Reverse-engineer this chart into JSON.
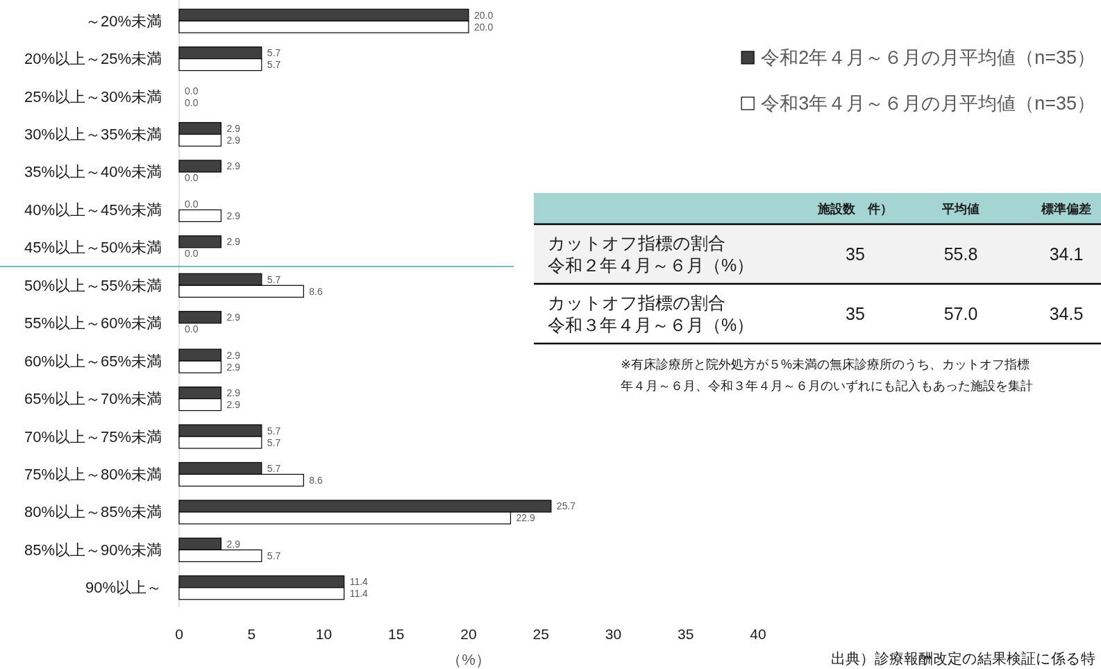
{
  "chart_data": [
    {
      "type": "bar",
      "orientation": "horizontal",
      "categories": [
        "～20%未満",
        "20%以上～25%未満",
        "25%以上～30%未満",
        "30%以上～35%未満",
        "35%以上～40%未満",
        "40%以上～45%未満",
        "45%以上～50%未満",
        "50%以上～55%未満",
        "55%以上～60%未満",
        "60%以上～65%未満",
        "65%以上～70%未満",
        "70%以上～75%未満",
        "75%以上～80%未満",
        "80%以上～85%未満",
        "85%以上～90%未満",
        "90%以上～"
      ],
      "series": [
        {
          "name": "令和2年４月～６月の月平均値（n=35）",
          "color": "#404040",
          "values": [
            20.0,
            5.7,
            0.0,
            2.9,
            2.9,
            0.0,
            2.9,
            5.7,
            2.9,
            2.9,
            2.9,
            5.7,
            5.7,
            25.7,
            2.9,
            11.4
          ],
          "value_labels": [
            "20.0",
            "5.7",
            "0.0",
            "2.9",
            "2.9",
            "0.0",
            "2.9",
            "5.7",
            "2.9",
            "2.9",
            "2.9",
            "5.7",
            "5.7",
            "25.7",
            "2.9",
            "11.4"
          ]
        },
        {
          "name": "令和3年４月～６月の月平均値（n=35）",
          "color": "#ffffff",
          "values": [
            20.0,
            5.7,
            0.0,
            2.9,
            0.0,
            2.9,
            0.0,
            8.6,
            0.0,
            2.9,
            2.9,
            5.7,
            8.6,
            22.9,
            5.7,
            11.4
          ],
          "value_labels": [
            "20.0",
            "5.7",
            "0.0",
            "2.9",
            "0.0",
            "2.9",
            "0.0",
            "8.6",
            "0.0",
            "2.9",
            "2.9",
            "5.7",
            "8.6",
            "22.9",
            "5.7",
            "11.4"
          ]
        }
      ],
      "xlim": [
        0,
        40
      ],
      "xticks": [
        0,
        5,
        10,
        15,
        20,
        25,
        30,
        35,
        40
      ],
      "xlabel": "（%）",
      "legend": "top right",
      "ref_lines": [
        {
          "axis": "y",
          "value": "50%以上～55%未満",
          "color": "#4aa3a3"
        }
      ],
      "annotations": [
        "出典）診療報酬改定の結果検証に係る特"
      ]
    },
    {
      "type": "other",
      "categories": [
        "施設数　件）",
        "平均値",
        "標準偏差"
      ],
      "series": [
        {
          "name": "カットオフ指標の割合令和２年４月～６月（%）",
          "values": [
            35,
            55.8,
            34.1
          ]
        },
        {
          "name": "カットオフ指標の割合令和３年４月～６月（%）",
          "values": [
            35,
            57.0,
            34.5
          ],
          "value_labels": [
            "35",
            "57.0",
            "34.5"
          ]
        }
      ],
      "data_labels": true,
      "annotations": [
        "※有床診療所と院外処方が５%未満の無床診療所のうち、カットオフ指標",
        "年４月～６月、令和３年４月～６月のいずれにも記入もあった施設を集計"
      ]
    }
  ]
}
